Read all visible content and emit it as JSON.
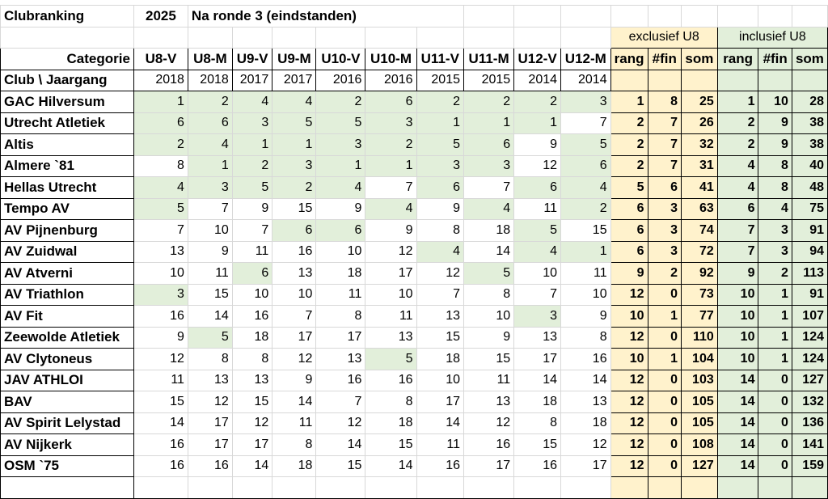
{
  "header": {
    "title": "Clubranking",
    "year": "2025",
    "subtitle": "Na ronde 3 (eindstanden)"
  },
  "groups": {
    "excl": "exclusief U8",
    "incl": "inclusief U8"
  },
  "categorie_label": "Categorie",
  "club_label": "Club  \\ Jaargang",
  "categories": [
    "U8-V",
    "U8-M",
    "U9-V",
    "U9-M",
    "U10-V",
    "U10-M",
    "U11-V",
    "U11-M",
    "U12-V",
    "U12-M"
  ],
  "years": [
    "2018",
    "2018",
    "2017",
    "2017",
    "2016",
    "2016",
    "2015",
    "2015",
    "2014",
    "2014"
  ],
  "summary_headers": [
    "rang",
    "#fin",
    "som",
    "rang",
    "#fin",
    "som"
  ],
  "rows": [
    {
      "club": "GAC Hilversum",
      "values": [
        "1",
        "2",
        "4",
        "4",
        "2",
        "6",
        "2",
        "2",
        "2",
        "3"
      ],
      "green": [
        1,
        1,
        1,
        1,
        1,
        1,
        1,
        1,
        1,
        1
      ],
      "excl": [
        "1",
        "8",
        "25"
      ],
      "incl": [
        "1",
        "10",
        "28"
      ]
    },
    {
      "club": "Utrecht Atletiek",
      "values": [
        "6",
        "6",
        "3",
        "5",
        "5",
        "3",
        "1",
        "1",
        "1",
        "7"
      ],
      "green": [
        1,
        1,
        1,
        1,
        1,
        1,
        1,
        1,
        1,
        0
      ],
      "excl": [
        "2",
        "7",
        "26"
      ],
      "incl": [
        "2",
        "9",
        "38"
      ]
    },
    {
      "club": "Altis",
      "values": [
        "2",
        "4",
        "1",
        "1",
        "3",
        "2",
        "5",
        "6",
        "9",
        "5"
      ],
      "green": [
        1,
        1,
        1,
        1,
        1,
        1,
        1,
        1,
        0,
        1
      ],
      "excl": [
        "2",
        "7",
        "32"
      ],
      "incl": [
        "2",
        "9",
        "38"
      ]
    },
    {
      "club": "Almere `81",
      "values": [
        "8",
        "1",
        "2",
        "3",
        "1",
        "1",
        "3",
        "3",
        "12",
        "6"
      ],
      "green": [
        0,
        1,
        1,
        1,
        1,
        1,
        1,
        1,
        0,
        1
      ],
      "excl": [
        "2",
        "7",
        "31"
      ],
      "incl": [
        "4",
        "8",
        "40"
      ]
    },
    {
      "club": "Hellas Utrecht",
      "values": [
        "4",
        "3",
        "5",
        "2",
        "4",
        "7",
        "6",
        "7",
        "6",
        "4"
      ],
      "green": [
        1,
        1,
        1,
        1,
        1,
        0,
        1,
        0,
        1,
        1
      ],
      "excl": [
        "5",
        "6",
        "41"
      ],
      "incl": [
        "4",
        "8",
        "48"
      ]
    },
    {
      "club": "Tempo AV",
      "values": [
        "5",
        "7",
        "9",
        "15",
        "9",
        "4",
        "9",
        "4",
        "11",
        "2"
      ],
      "green": [
        1,
        0,
        0,
        0,
        0,
        1,
        0,
        1,
        0,
        1
      ],
      "excl": [
        "6",
        "3",
        "63"
      ],
      "incl": [
        "6",
        "4",
        "75"
      ]
    },
    {
      "club": "AV Pijnenburg",
      "values": [
        "7",
        "10",
        "7",
        "6",
        "6",
        "9",
        "8",
        "18",
        "5",
        "15"
      ],
      "green": [
        0,
        0,
        0,
        1,
        1,
        0,
        0,
        0,
        1,
        0
      ],
      "excl": [
        "6",
        "3",
        "74"
      ],
      "incl": [
        "7",
        "3",
        "91"
      ]
    },
    {
      "club": "AV Zuidwal",
      "values": [
        "13",
        "9",
        "11",
        "16",
        "10",
        "12",
        "4",
        "14",
        "4",
        "1"
      ],
      "green": [
        0,
        0,
        0,
        0,
        0,
        0,
        1,
        0,
        1,
        1
      ],
      "excl": [
        "6",
        "3",
        "72"
      ],
      "incl": [
        "7",
        "3",
        "94"
      ]
    },
    {
      "club": "AV Atverni",
      "values": [
        "10",
        "11",
        "6",
        "13",
        "18",
        "17",
        "12",
        "5",
        "10",
        "11"
      ],
      "green": [
        0,
        0,
        1,
        0,
        0,
        0,
        0,
        1,
        0,
        0
      ],
      "excl": [
        "9",
        "2",
        "92"
      ],
      "incl": [
        "9",
        "2",
        "113"
      ]
    },
    {
      "club": "AV Triathlon",
      "values": [
        "3",
        "15",
        "10",
        "10",
        "11",
        "10",
        "7",
        "8",
        "7",
        "10"
      ],
      "green": [
        1,
        0,
        0,
        0,
        0,
        0,
        0,
        0,
        0,
        0
      ],
      "excl": [
        "12",
        "0",
        "73"
      ],
      "incl": [
        "10",
        "1",
        "91"
      ]
    },
    {
      "club": "AV Fit",
      "values": [
        "16",
        "14",
        "16",
        "7",
        "8",
        "11",
        "13",
        "10",
        "3",
        "9"
      ],
      "green": [
        0,
        0,
        0,
        0,
        0,
        0,
        0,
        0,
        1,
        0
      ],
      "excl": [
        "10",
        "1",
        "77"
      ],
      "incl": [
        "10",
        "1",
        "107"
      ]
    },
    {
      "club": "Zeewolde Atletiek",
      "values": [
        "9",
        "5",
        "18",
        "17",
        "17",
        "13",
        "15",
        "9",
        "13",
        "8"
      ],
      "green": [
        0,
        1,
        0,
        0,
        0,
        0,
        0,
        0,
        0,
        0
      ],
      "excl": [
        "12",
        "0",
        "110"
      ],
      "incl": [
        "10",
        "1",
        "124"
      ]
    },
    {
      "club": "AV Clytoneus",
      "values": [
        "12",
        "8",
        "8",
        "12",
        "13",
        "5",
        "18",
        "15",
        "17",
        "16"
      ],
      "green": [
        0,
        0,
        0,
        0,
        0,
        1,
        0,
        0,
        0,
        0
      ],
      "excl": [
        "10",
        "1",
        "104"
      ],
      "incl": [
        "10",
        "1",
        "124"
      ]
    },
    {
      "club": "JAV ATHLOI",
      "values": [
        "11",
        "13",
        "13",
        "9",
        "16",
        "16",
        "10",
        "11",
        "14",
        "14"
      ],
      "green": [
        0,
        0,
        0,
        0,
        0,
        0,
        0,
        0,
        0,
        0
      ],
      "excl": [
        "12",
        "0",
        "103"
      ],
      "incl": [
        "14",
        "0",
        "127"
      ]
    },
    {
      "club": "BAV",
      "values": [
        "15",
        "12",
        "15",
        "14",
        "7",
        "8",
        "17",
        "13",
        "18",
        "13"
      ],
      "green": [
        0,
        0,
        0,
        0,
        0,
        0,
        0,
        0,
        0,
        0
      ],
      "excl": [
        "12",
        "0",
        "105"
      ],
      "incl": [
        "14",
        "0",
        "132"
      ]
    },
    {
      "club": "AV Spirit Lelystad",
      "values": [
        "14",
        "17",
        "12",
        "11",
        "12",
        "18",
        "14",
        "12",
        "8",
        "18"
      ],
      "green": [
        0,
        0,
        0,
        0,
        0,
        0,
        0,
        0,
        0,
        0
      ],
      "excl": [
        "12",
        "0",
        "105"
      ],
      "incl": [
        "14",
        "0",
        "136"
      ]
    },
    {
      "club": "AV Nijkerk",
      "values": [
        "16",
        "17",
        "17",
        "8",
        "14",
        "15",
        "11",
        "16",
        "15",
        "12"
      ],
      "green": [
        0,
        0,
        0,
        0,
        0,
        0,
        0,
        0,
        0,
        0
      ],
      "excl": [
        "12",
        "0",
        "108"
      ],
      "incl": [
        "14",
        "0",
        "141"
      ]
    },
    {
      "club": "OSM `75",
      "values": [
        "16",
        "16",
        "14",
        "18",
        "15",
        "14",
        "16",
        "17",
        "16",
        "17"
      ],
      "green": [
        0,
        0,
        0,
        0,
        0,
        0,
        0,
        0,
        0,
        0
      ],
      "excl": [
        "12",
        "0",
        "127"
      ],
      "incl": [
        "14",
        "0",
        "159"
      ]
    }
  ]
}
